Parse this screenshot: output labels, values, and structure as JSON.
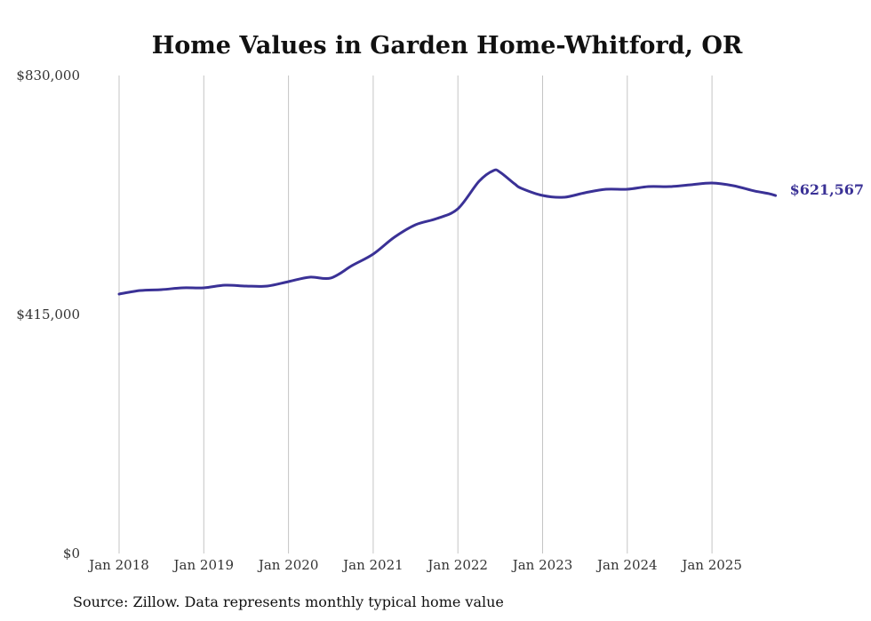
{
  "chart_data": {
    "type": "line",
    "title": "Home Values in Garden Home-Whitford, OR",
    "xlabel": "",
    "ylabel": "",
    "ylim": [
      0,
      830000
    ],
    "yticks": [
      0,
      415000,
      830000
    ],
    "ytick_labels": [
      "$0",
      "$415,000",
      "$830,000"
    ],
    "xticks": [
      "Jan 2018",
      "Jan 2019",
      "Jan 2020",
      "Jan 2021",
      "Jan 2022",
      "Jan 2023",
      "Jan 2024",
      "Jan 2025"
    ],
    "grid": "vertical",
    "series": [
      {
        "name": "Typical home value",
        "color": "#3a3196",
        "x": [
          2018.0,
          2018.25,
          2018.5,
          2018.75,
          2019.0,
          2019.25,
          2019.5,
          2019.75,
          2020.0,
          2020.25,
          2020.5,
          2020.75,
          2021.0,
          2021.25,
          2021.5,
          2021.75,
          2022.0,
          2022.25,
          2022.42,
          2022.5,
          2022.67,
          2022.75,
          2023.0,
          2023.25,
          2023.5,
          2023.75,
          2024.0,
          2024.25,
          2024.5,
          2024.75,
          2025.0,
          2025.25,
          2025.5,
          2025.67,
          2025.75
        ],
        "values": [
          450500,
          456600,
          458200,
          461300,
          461300,
          465900,
          464400,
          464400,
          472100,
          479800,
          478300,
          499900,
          519900,
          549200,
          570800,
          581600,
          598600,
          646400,
          665000,
          661900,
          641800,
          634100,
          621700,
          618600,
          626400,
          632500,
          632500,
          637100,
          637100,
          640200,
          643300,
          638700,
          629500,
          624900,
          621567
        ]
      }
    ],
    "end_label": "$621,567",
    "source": "Source: Zillow. Data represents monthly typical home value"
  }
}
